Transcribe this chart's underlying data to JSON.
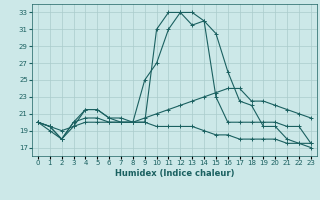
{
  "bg_color": "#cce8e8",
  "grid_color": "#aacccc",
  "line_color": "#1a6060",
  "x_labels": [
    "0",
    "1",
    "2",
    "3",
    "4",
    "5",
    "6",
    "7",
    "8",
    "9",
    "10",
    "11",
    "12",
    "13",
    "14",
    "15",
    "16",
    "17",
    "18",
    "19",
    "20",
    "21",
    "22",
    "23"
  ],
  "xlabel": "Humidex (Indice chaleur)",
  "ylabel_ticks": [
    17,
    19,
    21,
    23,
    25,
    27,
    29,
    31,
    33
  ],
  "ylim": [
    16.0,
    34.0
  ],
  "xlim": [
    -0.5,
    23.5
  ],
  "series": [
    [
      20.0,
      19.0,
      18.0,
      19.5,
      21.5,
      21.5,
      20.5,
      20.0,
      20.0,
      20.0,
      31.0,
      33.0,
      33.0,
      31.5,
      32.0,
      30.5,
      26.0,
      22.5,
      22.0,
      19.5,
      19.5,
      18.0,
      17.5,
      17.0
    ],
    [
      20.0,
      19.5,
      18.0,
      20.0,
      21.5,
      21.5,
      20.5,
      20.5,
      20.0,
      25.0,
      27.0,
      31.0,
      33.0,
      33.0,
      32.0,
      23.0,
      20.0,
      20.0,
      20.0,
      20.0,
      20.0,
      19.5,
      19.5,
      17.5
    ],
    [
      20.0,
      19.5,
      19.0,
      19.5,
      20.0,
      20.0,
      20.0,
      20.0,
      20.0,
      20.5,
      21.0,
      21.5,
      22.0,
      22.5,
      23.0,
      23.5,
      24.0,
      24.0,
      22.5,
      22.5,
      22.0,
      21.5,
      21.0,
      20.5
    ],
    [
      20.0,
      19.5,
      18.0,
      20.0,
      20.5,
      20.5,
      20.0,
      20.0,
      20.0,
      20.0,
      19.5,
      19.5,
      19.5,
      19.5,
      19.0,
      18.5,
      18.5,
      18.0,
      18.0,
      18.0,
      18.0,
      17.5,
      17.5,
      17.5
    ]
  ],
  "title_fontsize": 7,
  "xlabel_fontsize": 6,
  "tick_fontsize": 5,
  "linewidth": 0.8,
  "markersize": 2.5
}
